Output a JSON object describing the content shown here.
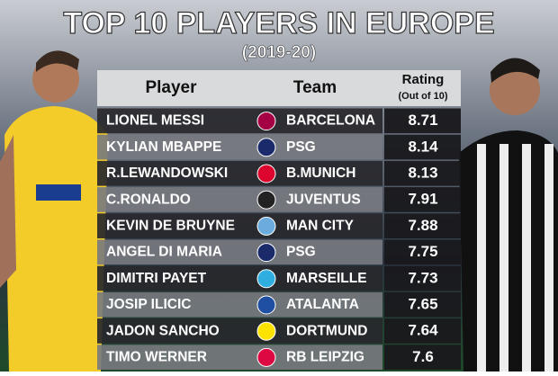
{
  "header": {
    "title": "TOP 10 PLAYERS IN EUROPE",
    "subtitle": "(2019-20)"
  },
  "table": {
    "columns": [
      "Player",
      "Team",
      "Rating",
      "(Out of 10)"
    ],
    "rows": [
      [
        "LIONEL MESSI",
        "BARCELONA",
        8.71
      ],
      [
        "KYLIAN MBAPPE",
        "PSG",
        8.14
      ],
      [
        "R.LEWANDOWSKI",
        "B.MUNICH",
        8.13
      ],
      [
        "C.RONALDO",
        "JUVENTUS",
        7.91
      ],
      [
        "KEVIN DE BRUYNE",
        "MAN CITY",
        7.88
      ],
      [
        "ANGEL DI MARIA",
        "PSG",
        7.75
      ],
      [
        "DIMITRI PAYET",
        "MARSEILLE",
        7.73
      ],
      [
        "JOSIP ILICIC",
        "ATALANTA",
        7.65
      ],
      [
        "JADON SANCHO",
        "DORTMUND",
        7.64
      ],
      [
        "TIMO WERNER",
        "RB LEIPZIG",
        7.6
      ]
    ]
  }
}
